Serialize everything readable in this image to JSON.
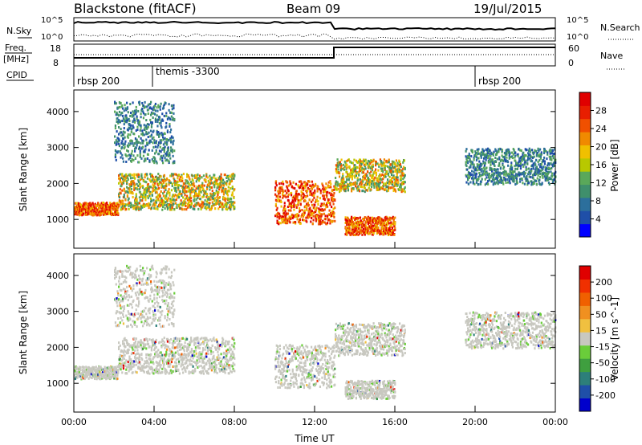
{
  "header": {
    "title": "Blackstone (fitACF)",
    "beam": "Beam 09",
    "date": "19/Jul/2015"
  },
  "top_panels": {
    "nsky_label": "N.Sky",
    "nsky_ticks": [
      "10^5",
      "10^0"
    ],
    "nsearch_label": "N.Search",
    "freq_label": "Freq.",
    "freq_unit": "[MHz]",
    "freq_ticks": [
      "18",
      "8"
    ],
    "nave_ticks": [
      "60",
      "0"
    ],
    "nave_label": "Nave",
    "cpid_label": "CPID",
    "cpid_segments": [
      "rbsp 200",
      "themis -3300",
      "rbsp 200"
    ]
  },
  "colors": {
    "power_scale": [
      "#0000ff",
      "#1f4fa8",
      "#2c6f9c",
      "#3f8f6c",
      "#5aa85a",
      "#b8c800",
      "#f0c000",
      "#f08a00",
      "#f05000",
      "#e81e00",
      "#e00000"
    ],
    "velocity_scale": [
      "#0000cc",
      "#1f4fa8",
      "#2d7f7a",
      "#3f9f3f",
      "#6acd3a",
      "#c8c8c0",
      "#f0c040",
      "#f09020",
      "#f06000",
      "#f03000",
      "#e00000"
    ]
  },
  "chart_data": [
    {
      "type": "heatmap",
      "title": "Power",
      "xlabel": "Time UT",
      "ylabel": "Slant Range [km]",
      "x_ticks": [
        "00:00",
        "04:00",
        "08:00",
        "12:00",
        "16:00",
        "20:00",
        "00:00"
      ],
      "y_ticks": [
        1000,
        2000,
        3000,
        4000
      ],
      "ylim": [
        200,
        4600
      ],
      "colorbar_label": "Power [dB]",
      "colorbar_ticks": [
        4,
        8,
        12,
        16,
        20,
        24,
        28
      ],
      "features": [
        {
          "from_h": 0.0,
          "to_h": 2.2,
          "range_km": [
            1150,
            1500
          ],
          "level": "high"
        },
        {
          "from_h": 2.2,
          "to_h": 8.0,
          "range_km": [
            1300,
            2300
          ],
          "level": "medium"
        },
        {
          "from_h": 10.0,
          "to_h": 13.0,
          "range_km": [
            900,
            2100
          ],
          "level": "high"
        },
        {
          "from_h": 13.5,
          "to_h": 16.0,
          "range_km": [
            600,
            1100
          ],
          "level": "high"
        },
        {
          "from_h": 13.0,
          "to_h": 16.5,
          "range_km": [
            1800,
            2700
          ],
          "level": "medium"
        },
        {
          "from_h": 19.5,
          "to_h": 24.0,
          "range_km": [
            2000,
            3000
          ],
          "level": "low"
        },
        {
          "from_h": 2.0,
          "to_h": 5.0,
          "range_km": [
            2600,
            4300
          ],
          "level": "low"
        }
      ]
    },
    {
      "type": "heatmap",
      "title": "Velocity",
      "xlabel": "Time UT",
      "ylabel": "Slant Range [km]",
      "x_ticks": [
        "00:00",
        "04:00",
        "08:00",
        "12:00",
        "16:00",
        "20:00",
        "00:00"
      ],
      "y_ticks": [
        1000,
        2000,
        3000,
        4000
      ],
      "ylim": [
        200,
        4600
      ],
      "colorbar_label": "Velocity [m s^-1]",
      "colorbar_ticks": [
        200,
        100,
        50,
        15,
        -15,
        -50,
        -100,
        -200
      ]
    }
  ]
}
